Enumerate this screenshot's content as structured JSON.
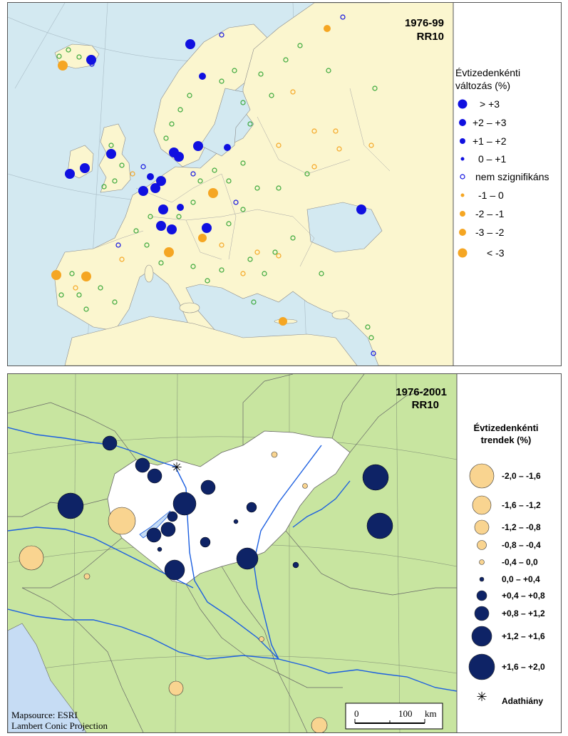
{
  "map1": {
    "title_period": "1976-99",
    "title_index": "RR10",
    "legend_title_line1": "Évtizedenkénti",
    "legend_title_line2": "változás (%)",
    "legend_items": [
      {
        "label": "> +3",
        "color": "#1010e0",
        "style": "filled"
      },
      {
        "label": "+2 – +3",
        "color": "#1010e0",
        "style": "filled"
      },
      {
        "label": "+1 – +2",
        "color": "#1010e0",
        "style": "filled"
      },
      {
        "label": "0 – +1",
        "color": "#1010e0",
        "style": "filled"
      },
      {
        "label": "nem szignifikáns",
        "color": "#1010e0",
        "style": "hollow"
      },
      {
        "label": "-1 – 0",
        "color": "#f5a623",
        "style": "filled"
      },
      {
        "label": "-2 – -1",
        "color": "#f5a623",
        "style": "filled"
      },
      {
        "label": "-3 – -2",
        "color": "#f5a623",
        "style": "filled"
      },
      {
        "label": "< -3",
        "color": "#f5a623",
        "style": "filled"
      }
    ],
    "colors": {
      "land": "#fbf6cf",
      "sea": "#d3e9f1",
      "border": "#9a9a9a",
      "ns_green": "#3aa83a",
      "ns_blue": "#1010e0"
    }
  },
  "map2": {
    "title_period": "1976-2001",
    "title_index": "RR10",
    "legend_title_line1": "Évtizedenkénti",
    "legend_title_line2": "trendek (%)",
    "legend_items": [
      {
        "label": "-2,0 – -1,6",
        "color": "#f9d490",
        "sign": "neg"
      },
      {
        "label": "-1,6 – -1,2",
        "color": "#f9d490",
        "sign": "neg"
      },
      {
        "label": "-1,2 – -0,8",
        "color": "#f9d490",
        "sign": "neg"
      },
      {
        "label": "-0,8 – -0,4",
        "color": "#f9d490",
        "sign": "neg"
      },
      {
        "label": "-0,4 – 0,0",
        "color": "#f9d490",
        "sign": "neg"
      },
      {
        "label": "0,0 – +0,4",
        "color": "#0e2366",
        "sign": "pos"
      },
      {
        "label": "+0,4 – +0,8",
        "color": "#0e2366",
        "sign": "pos"
      },
      {
        "label": "+0,8 – +1,2",
        "color": "#0e2366",
        "sign": "pos"
      },
      {
        "label": "+1,2 – +1,6",
        "color": "#0e2366",
        "sign": "pos"
      },
      {
        "label": "+1,6 – +2,0",
        "color": "#0e2366",
        "sign": "pos"
      }
    ],
    "missing_label": "Adathiány",
    "scale": {
      "zero": "0",
      "mid": "100",
      "unit": "km"
    },
    "source_line1": "Mapsource: ESRI",
    "source_line2": "Lambert Conic Projection",
    "colors": {
      "land": "#c8e5a0",
      "hungary": "#ffffff",
      "sea": "#c6dcf4",
      "river": "#1c5fe0",
      "border": "#666666"
    }
  }
}
